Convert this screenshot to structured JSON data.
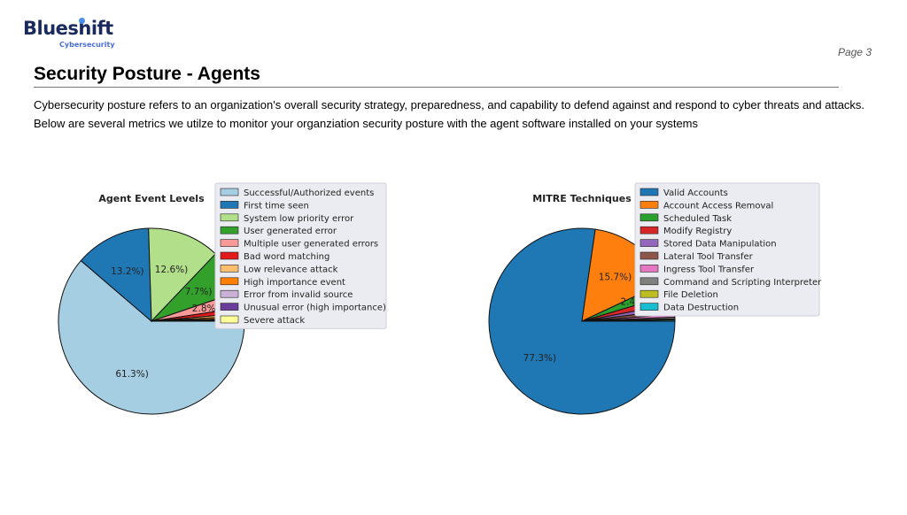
{
  "logo": {
    "name": "Blueshift",
    "tagline": "Cybersecurity"
  },
  "page_label": "Page 3",
  "heading": "Security Posture - Agents",
  "intro": [
    "Cybersecurity posture refers to an organization's overall security strategy, preparedness, and capability to defend against and respond to cyber threats and attacks.",
    "Below are several metrics we utilze to monitor your organziation security posture with the agent software installed on your systems"
  ],
  "chart_data": [
    {
      "type": "pie",
      "title": "Agent Event Levels",
      "legend": "right",
      "slices": [
        {
          "label": "Successful/Authorized events",
          "value": 61.3,
          "display": "61.3%)",
          "color": "#a6cee3"
        },
        {
          "label": "First time seen",
          "value": 13.2,
          "display": "13.2%)",
          "color": "#1f78b4"
        },
        {
          "label": "System low priority error",
          "value": 12.6,
          "display": "12.6%)",
          "color": "#b2df8a"
        },
        {
          "label": "User generated error",
          "value": 7.7,
          "display": "7.7%)",
          "color": "#33a02c"
        },
        {
          "label": "Multiple user generated errors",
          "value": 2.8,
          "display": "2.8%)",
          "color": "#fb9a99"
        },
        {
          "label": "Bad word matching",
          "value": 1.0,
          "display": "",
          "color": "#e31a1c"
        },
        {
          "label": "Low relevance attack",
          "value": 0.5,
          "display": "",
          "color": "#fdbf6f"
        },
        {
          "label": "High importance event",
          "value": 0.4,
          "display": "",
          "color": "#ff7f00"
        },
        {
          "label": "Error from invalid source",
          "value": 0.2,
          "display": "",
          "color": "#cab2d6"
        },
        {
          "label": "Unusual error (high importance)",
          "value": 0.2,
          "display": "",
          "color": "#6a3d9a"
        },
        {
          "label": "Severe attack",
          "value": 0.1,
          "display": "",
          "color": "#ffff99"
        }
      ]
    },
    {
      "type": "pie",
      "title": "MITRE Techniques",
      "legend": "right",
      "slices": [
        {
          "label": "Valid Accounts",
          "value": 77.3,
          "display": "77.3%)",
          "color": "#1f77b4"
        },
        {
          "label": "Account Access Removal",
          "value": 15.7,
          "display": "15.7%)",
          "color": "#ff7f0e"
        },
        {
          "label": "Scheduled Task",
          "value": 2.4,
          "display": "2.4%)",
          "color": "#2ca02c"
        },
        {
          "label": "Modify Registry",
          "value": 1.6,
          "display": "",
          "color": "#d62728"
        },
        {
          "label": "Stored Data Manipulation",
          "value": 1.0,
          "display": "",
          "color": "#9467bd"
        },
        {
          "label": "Lateral Tool Transfer",
          "value": 0.8,
          "display": "",
          "color": "#8c564b"
        },
        {
          "label": "Ingress Tool Transfer",
          "value": 0.5,
          "display": "",
          "color": "#e377c2"
        },
        {
          "label": "Command and Scripting Interpreter",
          "value": 0.3,
          "display": "",
          "color": "#7f7f7f"
        },
        {
          "label": "File Deletion",
          "value": 0.2,
          "display": "",
          "color": "#bcbd22"
        },
        {
          "label": "Data Destruction",
          "value": 0.2,
          "display": "",
          "color": "#17becf"
        }
      ]
    }
  ]
}
